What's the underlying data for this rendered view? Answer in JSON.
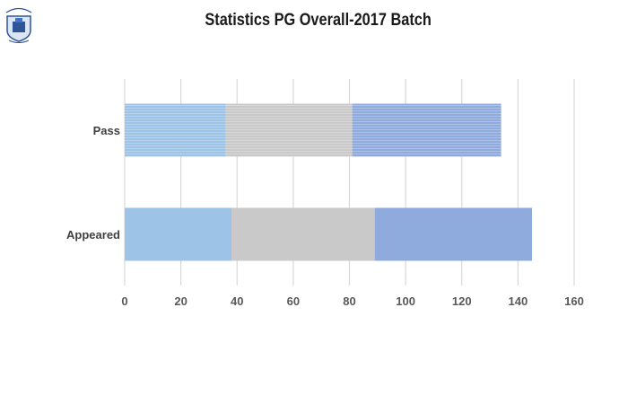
{
  "chart_data": {
    "type": "bar",
    "orientation": "horizontal",
    "stacked": true,
    "title": "Statistics PG Overall-2017 Batch",
    "categories": [
      "Pass",
      "Appeared"
    ],
    "series": [
      {
        "values": [
          36,
          38
        ],
        "color": "#9dc3e6"
      },
      {
        "values": [
          45,
          51
        ],
        "color": "#c9c9c9"
      },
      {
        "values": [
          53,
          56
        ],
        "color": "#8faadc"
      }
    ],
    "xlim": [
      0,
      160
    ],
    "xticks": [
      "0",
      "20",
      "40",
      "60",
      "80",
      "100",
      "120",
      "140",
      "160"
    ],
    "grid": true,
    "legend": "none"
  },
  "logo": {
    "icon": "university-crest-icon"
  }
}
